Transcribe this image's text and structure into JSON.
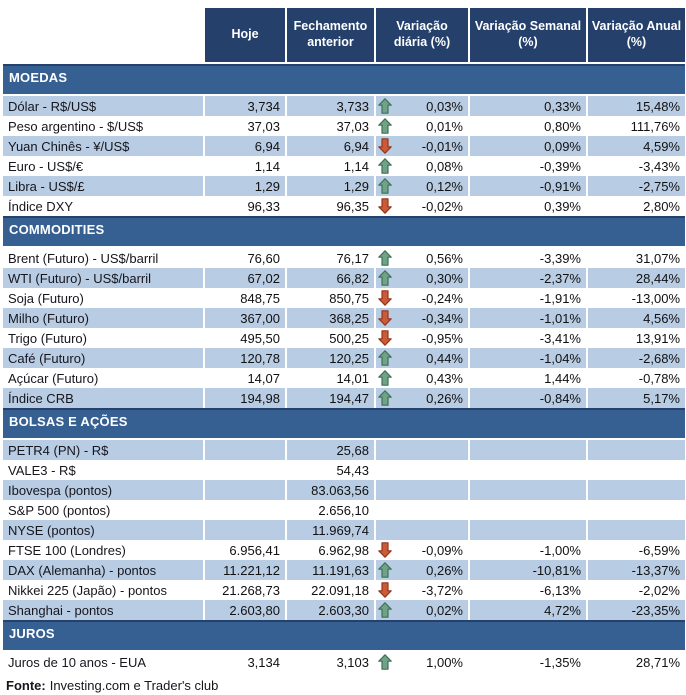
{
  "colors": {
    "header_bg": "#24406B",
    "section_bg": "#376092",
    "row_alt_bg": "#B8CCE4",
    "row_bg": "#FFFFFF",
    "up_arrow_fill": "#6FA287",
    "up_arrow_border": "#3F7153",
    "down_arrow_fill": "#C95B39",
    "down_arrow_border": "#96351B",
    "header_text": "#FFFFFF",
    "body_text": "#111111"
  },
  "columns": [
    "Hoje",
    "Fechamento anterior",
    "Variação diária (%)",
    "Variação Semanal (%)",
    "Variação Anual (%)"
  ],
  "sections": [
    {
      "title": "MOEDAS",
      "rows": [
        {
          "label": "Dólar - R$/US$",
          "hoje": "3,734",
          "prev": "3,733",
          "trend": "up",
          "daily": "0,03%",
          "weekly": "0,33%",
          "annual": "15,48%"
        },
        {
          "label": "Peso argentino - $/US$",
          "hoje": "37,03",
          "prev": "37,03",
          "trend": "up",
          "daily": "0,01%",
          "weekly": "0,80%",
          "annual": "111,76%"
        },
        {
          "label": "Yuan Chinês - ¥/US$",
          "hoje": "6,94",
          "prev": "6,94",
          "trend": "down",
          "daily": "-0,01%",
          "weekly": "0,09%",
          "annual": "4,59%"
        },
        {
          "label": "Euro - US$/€",
          "hoje": "1,14",
          "prev": "1,14",
          "trend": "up",
          "daily": "0,08%",
          "weekly": "-0,39%",
          "annual": "-3,43%"
        },
        {
          "label": "Libra - US$/£",
          "hoje": "1,29",
          "prev": "1,29",
          "trend": "up",
          "daily": "0,12%",
          "weekly": "-0,91%",
          "annual": "-2,75%"
        },
        {
          "label": "Índice DXY",
          "hoje": "96,33",
          "prev": "96,35",
          "trend": "down",
          "daily": "-0,02%",
          "weekly": "0,39%",
          "annual": "2,80%"
        }
      ]
    },
    {
      "title": "COMMODITIES",
      "rows": [
        {
          "label": "Brent (Futuro) - US$/barril",
          "hoje": "76,60",
          "prev": "76,17",
          "trend": "up",
          "daily": "0,56%",
          "weekly": "-3,39%",
          "annual": "31,07%"
        },
        {
          "label": "WTI (Futuro) - US$/barril",
          "hoje": "67,02",
          "prev": "66,82",
          "trend": "up",
          "daily": "0,30%",
          "weekly": "-2,37%",
          "annual": "28,44%"
        },
        {
          "label": "Soja (Futuro)",
          "hoje": "848,75",
          "prev": "850,75",
          "trend": "down",
          "daily": "-0,24%",
          "weekly": "-1,91%",
          "annual": "-13,00%"
        },
        {
          "label": "Milho (Futuro)",
          "hoje": "367,00",
          "prev": "368,25",
          "trend": "down",
          "daily": "-0,34%",
          "weekly": "-1,01%",
          "annual": "4,56%"
        },
        {
          "label": "Trigo (Futuro)",
          "hoje": "495,50",
          "prev": "500,25",
          "trend": "down",
          "daily": "-0,95%",
          "weekly": "-3,41%",
          "annual": "13,91%"
        },
        {
          "label": "Café (Futuro)",
          "hoje": "120,78",
          "prev": "120,25",
          "trend": "up",
          "daily": "0,44%",
          "weekly": "-1,04%",
          "annual": "-2,68%"
        },
        {
          "label": "Açúcar (Futuro)",
          "hoje": "14,07",
          "prev": "14,01",
          "trend": "up",
          "daily": "0,43%",
          "weekly": "1,44%",
          "annual": "-0,78%"
        },
        {
          "label": "Índice CRB",
          "hoje": "194,98",
          "prev": "194,47",
          "trend": "up",
          "daily": "0,26%",
          "weekly": "-0,84%",
          "annual": "5,17%"
        }
      ]
    },
    {
      "title": "BOLSAS E AÇÕES",
      "rows": [
        {
          "label": "PETR4 (PN) - R$",
          "hoje": "",
          "prev": "25,68",
          "trend": null,
          "daily": "",
          "weekly": "",
          "annual": ""
        },
        {
          "label": "VALE3 - R$",
          "hoje": "",
          "prev": "54,43",
          "trend": null,
          "daily": "",
          "weekly": "",
          "annual": ""
        },
        {
          "label": "Ibovespa (pontos)",
          "hoje": "",
          "prev": "83.063,56",
          "trend": null,
          "daily": "",
          "weekly": "",
          "annual": ""
        },
        {
          "label": "S&P 500 (pontos)",
          "hoje": "",
          "prev": "2.656,10",
          "trend": null,
          "daily": "",
          "weekly": "",
          "annual": ""
        },
        {
          "label": "NYSE (pontos)",
          "hoje": "",
          "prev": "11.969,74",
          "trend": null,
          "daily": "",
          "weekly": "",
          "annual": ""
        },
        {
          "label": "FTSE 100 (Londres)",
          "hoje": "6.956,41",
          "prev": "6.962,98",
          "trend": "down",
          "daily": "-0,09%",
          "weekly": "-1,00%",
          "annual": "-6,59%"
        },
        {
          "label": "DAX (Alemanha) - pontos",
          "hoje": "11.221,12",
          "prev": "11.191,63",
          "trend": "up",
          "daily": "0,26%",
          "weekly": "-10,81%",
          "annual": "-13,37%"
        },
        {
          "label": "Nikkei 225 (Japão) - pontos",
          "hoje": "21.268,73",
          "prev": "22.091,18",
          "trend": "down",
          "daily": "-3,72%",
          "weekly": "-6,13%",
          "annual": "-2,02%"
        },
        {
          "label": "Shanghai - pontos",
          "hoje": "2.603,80",
          "prev": "2.603,30",
          "trend": "up",
          "daily": "0,02%",
          "weekly": "4,72%",
          "annual": "-23,35%"
        }
      ]
    },
    {
      "title": "JUROS",
      "rows": [
        {
          "label": "Juros de 10 anos - EUA",
          "hoje": "3,134",
          "prev": "3,103",
          "trend": "up",
          "daily": "1,00%",
          "weekly": "-1,35%",
          "annual": "28,71%"
        }
      ]
    }
  ],
  "footer": {
    "label": "Fonte:",
    "text": "Investing.com e Trader's club"
  }
}
